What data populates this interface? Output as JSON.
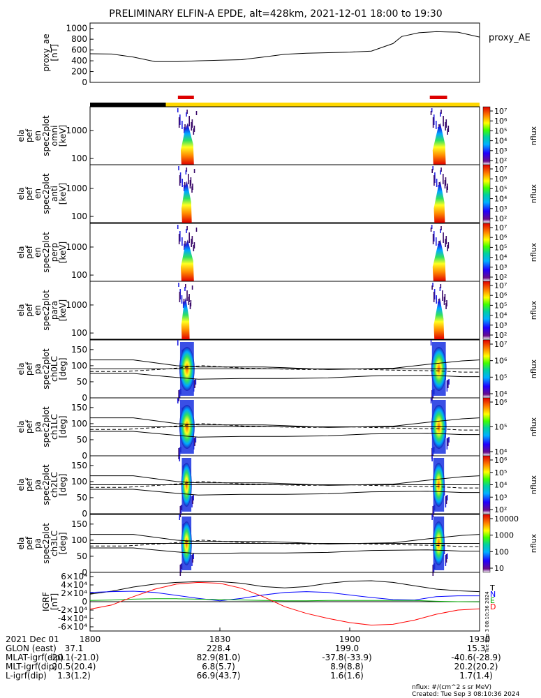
{
  "title": "PRELIMINARY ELFIN-A EPDE, alt=428km, 2021-12-01 18:00 to 19:30",
  "colors": {
    "black_bar": "#000000",
    "yellow_bar": "#ffd700",
    "red_bar": "#dd0000",
    "curve_T": "#000000",
    "curve_N": "#0000ff",
    "curve_E": "#00aa00",
    "curve_D": "#ff0000"
  },
  "chart_data": [
    {
      "type": "line",
      "panel": "proxy_ae",
      "ylabel_lines": [
        "proxy_ae",
        "[nT]"
      ],
      "right_label": "proxy_AE",
      "ylim": [
        0,
        1100
      ],
      "yticks": [
        "0",
        "200",
        "400",
        "600",
        "800",
        "1000"
      ],
      "x": [
        0,
        5,
        10,
        15,
        20,
        25,
        30,
        35,
        40,
        45,
        50,
        55,
        60,
        65,
        70,
        72,
        76,
        80,
        85,
        90
      ],
      "values": [
        530,
        525,
        470,
        385,
        385,
        400,
        410,
        420,
        470,
        520,
        540,
        550,
        560,
        580,
        720,
        850,
        920,
        940,
        930,
        840
      ]
    },
    {
      "type": "bar",
      "panel": "status-bar",
      "x_units": "minutes after 18:00",
      "segments": [
        {
          "start": 0,
          "end": 17.5,
          "color": "black"
        },
        {
          "start": 17.5,
          "end": 90,
          "color": "yellow"
        }
      ],
      "red_segments": [
        {
          "start": 20.3,
          "end": 24.0
        },
        {
          "start": 78.5,
          "end": 82.5
        }
      ]
    },
    {
      "type": "heatmap",
      "panel": "ela_pef_en_spec2plot_omni",
      "ylabel_lines": [
        "ela",
        "pef",
        "en",
        "spec2plot",
        "omni",
        "[keV]"
      ],
      "y_scale": "log",
      "yticks": [
        "100",
        "1000"
      ],
      "colorbar": {
        "label": "nflux",
        "ticks": [
          "10²",
          "10³",
          "10⁴",
          "10⁵",
          "10⁶",
          "10⁷"
        ]
      },
      "bursts": [
        {
          "start": 20.8,
          "end": 24.0
        },
        {
          "start": 79.0,
          "end": 82.2
        }
      ]
    },
    {
      "type": "heatmap",
      "panel": "ela_pef_en_spec2plot_anti",
      "ylabel_lines": [
        "ela",
        "pef",
        "en",
        "spec2plot",
        "anti",
        "[keV]"
      ],
      "y_scale": "log",
      "yticks": [
        "100",
        "1000"
      ],
      "colorbar": {
        "label": "nflux",
        "ticks": [
          "10²",
          "10³",
          "10⁴",
          "10⁵",
          "10⁶",
          "10⁷"
        ]
      },
      "bursts": [
        {
          "start": 21.0,
          "end": 23.5
        },
        {
          "start": 79.3,
          "end": 82.0
        }
      ]
    },
    {
      "type": "heatmap",
      "panel": "ela_pef_en_spec2plot_perp",
      "ylabel_lines": [
        "ela",
        "pef",
        "en",
        "spec2plot",
        "perp",
        "[keV]"
      ],
      "y_scale": "log",
      "yticks": [
        "100",
        "1000"
      ],
      "colorbar": {
        "label": "nflux",
        "ticks": [
          "10²",
          "10³",
          "10⁴",
          "10⁵",
          "10⁶",
          "10⁷"
        ]
      },
      "bursts": [
        {
          "start": 20.8,
          "end": 24.0
        },
        {
          "start": 79.0,
          "end": 82.2
        }
      ]
    },
    {
      "type": "heatmap",
      "panel": "ela_pef_en_spec2plot_para",
      "ylabel_lines": [
        "ela",
        "pef",
        "en",
        "spec2plot",
        "para",
        "[keV]"
      ],
      "y_scale": "log",
      "yticks": [
        "100",
        "1000"
      ],
      "colorbar": {
        "label": "nflux",
        "ticks": [
          "10²",
          "10³",
          "10⁴",
          "10⁵",
          "10⁶",
          "10⁷"
        ]
      },
      "bursts": [
        {
          "start": 21.0,
          "end": 23.0
        },
        {
          "start": 79.3,
          "end": 81.8
        }
      ]
    },
    {
      "type": "heatmap",
      "panel": "ela_pef_pa_spec2plot_ch0LC",
      "ylabel_lines": [
        "ela",
        "pef",
        "pa",
        "spec2plot",
        "ch0LC",
        "[deg]"
      ],
      "ylim": [
        0,
        180
      ],
      "yticks": [
        "0",
        "50",
        "100",
        "150"
      ],
      "colorbar": {
        "label": "nflux",
        "ticks": [
          "10⁴",
          "10⁵",
          "10⁶",
          "10⁷"
        ]
      },
      "bursts": [
        {
          "start": 20.8,
          "end": 24.0
        },
        {
          "start": 79.0,
          "end": 82.2
        }
      ]
    },
    {
      "type": "heatmap",
      "panel": "ela_pef_pa_spec2plot_ch1LC",
      "ylabel_lines": [
        "ela",
        "pef",
        "pa",
        "spec2plot",
        "ch1LC",
        "[deg]"
      ],
      "ylim": [
        0,
        180
      ],
      "yticks": [
        "0",
        "50",
        "100",
        "150"
      ],
      "colorbar": {
        "label": "nflux",
        "ticks": [
          "10⁴",
          "10⁵",
          "10⁶"
        ]
      },
      "bursts": [
        {
          "start": 20.8,
          "end": 24.0
        },
        {
          "start": 79.0,
          "end": 82.2
        }
      ]
    },
    {
      "type": "heatmap",
      "panel": "ela_pef_pa_spec2plot_ch2LC",
      "ylabel_lines": [
        "ela",
        "pef",
        "pa",
        "spec2plot",
        "ch2LC",
        "[deg]"
      ],
      "ylim": [
        0,
        180
      ],
      "yticks": [
        "0",
        "50",
        "100",
        "150"
      ],
      "colorbar": {
        "label": "nflux",
        "ticks": [
          "10²",
          "10³",
          "10⁴",
          "10⁵",
          "10⁶"
        ]
      },
      "bursts": [
        {
          "start": 21.2,
          "end": 23.4
        },
        {
          "start": 79.3,
          "end": 81.8
        }
      ]
    },
    {
      "type": "heatmap",
      "panel": "ela_pef_pa_spec2plot_ch3LC",
      "ylabel_lines": [
        "ela",
        "pef",
        "pa",
        "spec2plot",
        "ch3LC",
        "[deg]"
      ],
      "ylim": [
        0,
        180
      ],
      "yticks": [
        "0",
        "50",
        "100",
        "150"
      ],
      "colorbar": {
        "label": "nflux",
        "ticks": [
          "10",
          "100",
          "1000",
          "10000"
        ]
      },
      "bursts": [
        {
          "start": 21.2,
          "end": 23.4
        },
        {
          "start": 79.3,
          "end": 81.8
        }
      ]
    },
    {
      "type": "line",
      "panel": "IGRF",
      "ylabel_lines": [
        "IGRF",
        "[nT]"
      ],
      "ylim": [
        -70000,
        70000
      ],
      "yticks": [
        "-6×10⁴",
        "-4×10⁴",
        "-2×10⁴",
        "0",
        "2×10⁴",
        "4×10⁴",
        "6×10⁴"
      ],
      "x": [
        0,
        5,
        10,
        15,
        20,
        25,
        30,
        35,
        40,
        45,
        50,
        55,
        60,
        65,
        70,
        75,
        80,
        85,
        90
      ],
      "series": [
        {
          "name": "T",
          "values": [
            18000,
            25000,
            35000,
            42000,
            46000,
            48000,
            48000,
            44000,
            36000,
            33000,
            36000,
            44000,
            49000,
            50000,
            46000,
            38000,
            30000,
            26000,
            24000
          ]
        },
        {
          "name": "N",
          "values": [
            22000,
            24000,
            25000,
            22000,
            15000,
            8000,
            2000,
            8000,
            16000,
            22000,
            24000,
            22000,
            16000,
            10000,
            5000,
            4000,
            12000,
            14000,
            14000
          ]
        },
        {
          "name": "E",
          "values": [
            3000,
            4000,
            6000,
            7000,
            7000,
            6000,
            5000,
            4000,
            3000,
            2000,
            2000,
            3000,
            3000,
            3000,
            3000,
            3000,
            1000,
            0,
            -500
          ]
        },
        {
          "name": "D",
          "values": [
            -18000,
            -8000,
            12000,
            30000,
            42000,
            46000,
            44000,
            32000,
            12000,
            -12000,
            -28000,
            -40000,
            -50000,
            -56000,
            -54000,
            -44000,
            -30000,
            -20000,
            -17000
          ]
        }
      ]
    }
  ],
  "footer": {
    "row_labels": [
      "2021 Dec 01",
      "GLON (east)",
      "MLAT-igrf(dip)",
      "MLT-igrf(dip)",
      "L-igrf(dip)"
    ],
    "x_ticks": [
      "1800",
      "1830",
      "1900",
      "1930"
    ],
    "columns": [
      [
        "37.1",
        "-20.1(-21.0)",
        "20.5(20.4)",
        "1.3(1.2)"
      ],
      [
        "228.4",
        "82.9(81.0)",
        "6.8(5.7)",
        "66.9(43.7)"
      ],
      [
        "199.0",
        "-37.8(-33.9)",
        "8.9(8.8)",
        "1.6(1.6)"
      ],
      [
        "15.3",
        "-40.6(-28.9)",
        "20.2(20.2)",
        "1.7(1.4)"
      ]
    ],
    "units_note": "nflux: #/(cm^2 s sr MeV)",
    "created": "Created: Tue Sep  3 08:10:36 2024",
    "side_stamp": "Tue Sep  3 08:10:36 2024"
  }
}
